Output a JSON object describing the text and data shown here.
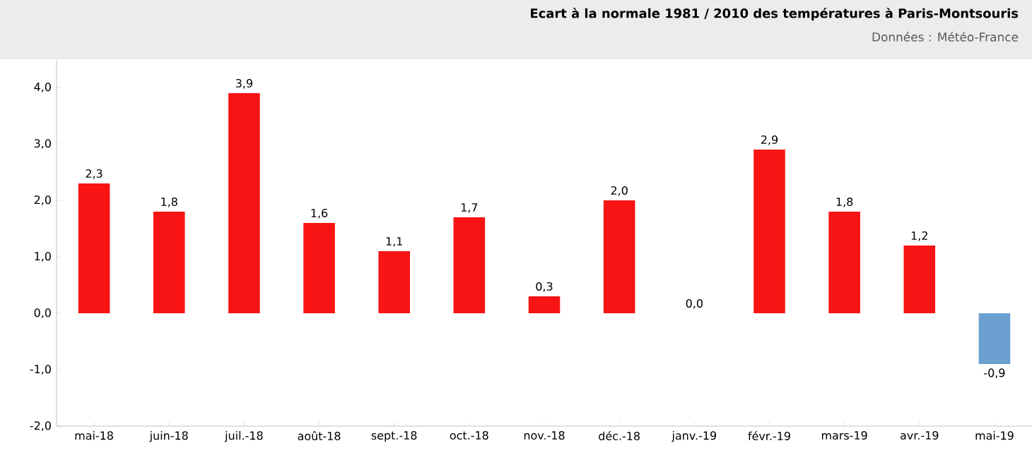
{
  "chart_data": {
    "type": "bar",
    "title": "Ecart à la normale 1981 / 2010 des températures à Paris-Montsouris",
    "subtitle": "Données : Météo-France",
    "categories": [
      "mai-18",
      "juin-18",
      "juil.-18",
      "août-18",
      "sept.-18",
      "oct.-18",
      "nov.-18",
      "déc.-18",
      "janv.-19",
      "févr.-19",
      "mars-19",
      "avr.-19",
      "mai-19"
    ],
    "values": [
      2.3,
      1.8,
      3.9,
      1.6,
      1.1,
      1.7,
      0.3,
      2.0,
      0.0,
      2.9,
      1.8,
      1.2,
      -0.9
    ],
    "colors": [
      "#f81414",
      "#f81414",
      "#f81414",
      "#f81414",
      "#f81414",
      "#f81414",
      "#f81414",
      "#f81414",
      "#f81414",
      "#f81414",
      "#f81414",
      "#f81414",
      "#6b9fd0"
    ],
    "value_labels": [
      "2,3",
      "1,8",
      "3,9",
      "1,6",
      "1,1",
      "1,7",
      "0,3",
      "2,0",
      "0,0",
      "2,9",
      "1,8",
      "1,2",
      "-0,9"
    ],
    "ylim": [
      -2,
      4.5
    ],
    "yticks": [
      {
        "value": -2,
        "label": "-2,0"
      },
      {
        "value": -1,
        "label": "-1,0"
      },
      {
        "value": 0,
        "label": "0,0"
      },
      {
        "value": 1,
        "label": "1,0"
      },
      {
        "value": 2,
        "label": "2,0"
      },
      {
        "value": 3,
        "label": "3,0"
      },
      {
        "value": 4,
        "label": "4,0"
      }
    ]
  }
}
